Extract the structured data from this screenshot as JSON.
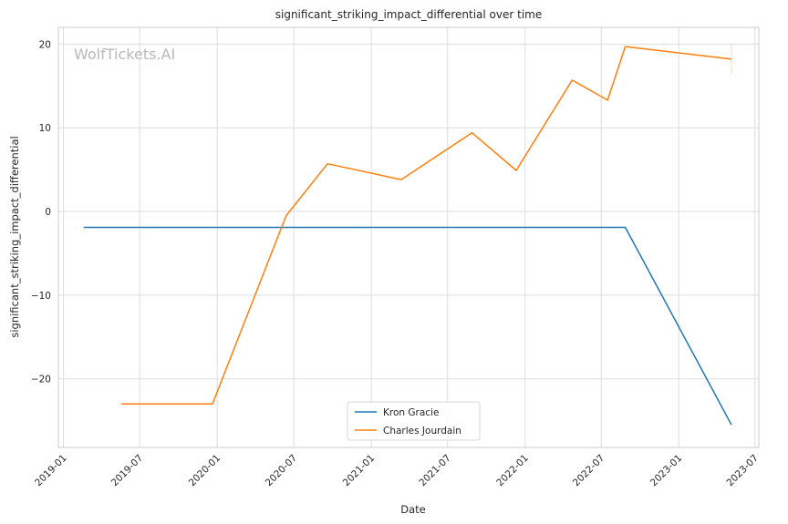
{
  "chart_data": {
    "type": "line",
    "title": "significant_striking_impact_differential over time",
    "xlabel": "Date",
    "ylabel": "significant_striking_impact_differential",
    "watermark": "WolfTickets.AI",
    "x_ticks": [
      "2019-01",
      "2019-07",
      "2020-01",
      "2020-07",
      "2021-01",
      "2021-07",
      "2022-01",
      "2022-07",
      "2023-01",
      "2023-07"
    ],
    "y_ticks": [
      -20,
      -10,
      0,
      10,
      20
    ],
    "xlim": [
      "2018-12-20",
      "2023-07-10"
    ],
    "ylim": [
      -28.2,
      22
    ],
    "grid": true,
    "legend": "bottom-center",
    "series": [
      {
        "name": "Kron Gracie",
        "color": "#1f77b4",
        "points": [
          [
            "2019-02-18",
            -1.9
          ],
          [
            "2022-08-27",
            -1.9
          ],
          [
            "2023-05-06",
            -25.5
          ]
        ]
      },
      {
        "name": "Charles Jourdain",
        "color": "#ff7f0e",
        "points": [
          [
            "2019-05-18",
            -23.0
          ],
          [
            "2019-12-21",
            -23.0
          ],
          [
            "2020-06-13",
            -0.5
          ],
          [
            "2020-09-19",
            5.7
          ],
          [
            "2021-03-13",
            3.8
          ],
          [
            "2021-08-28",
            9.4
          ],
          [
            "2021-12-11",
            4.9
          ],
          [
            "2022-04-23",
            15.7
          ],
          [
            "2022-07-16",
            13.3
          ],
          [
            "2022-08-27",
            19.7
          ],
          [
            "2023-05-06",
            18.2
          ]
        ]
      }
    ]
  }
}
